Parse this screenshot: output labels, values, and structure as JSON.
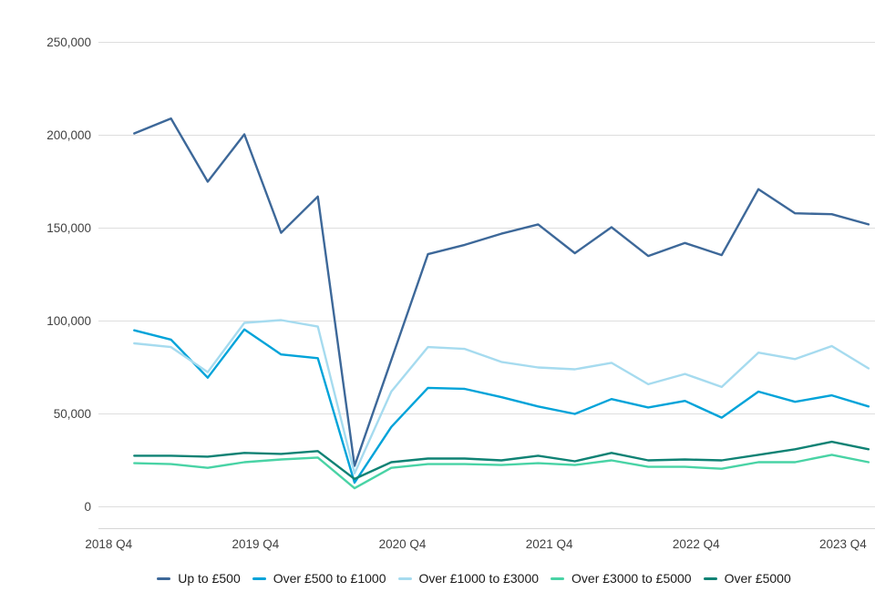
{
  "chart_data": {
    "type": "line",
    "title": "",
    "categories": [
      "2018 Q4",
      "2019 Q1",
      "2019 Q2",
      "2019 Q3",
      "2019 Q4",
      "2020 Q1",
      "2020 Q2",
      "2020 Q3",
      "2020 Q4",
      "2021 Q1",
      "2021 Q2",
      "2021 Q3",
      "2021 Q4",
      "2022 Q1",
      "2022 Q2",
      "2022 Q3",
      "2022 Q4",
      "2023 Q1",
      "2023 Q2",
      "2023 Q3",
      "2023 Q4"
    ],
    "series": [
      {
        "name": "Up to £500",
        "color": "#3d6899",
        "values": [
          201000,
          209000,
          175000,
          200500,
          147500,
          167000,
          22000,
          79000,
          136000,
          141000,
          147000,
          152000,
          136500,
          150500,
          135000,
          142000,
          135500,
          171000,
          158000,
          157500,
          152000
        ]
      },
      {
        "name": "Over £500 to £1000",
        "color": "#00a3d9",
        "values": [
          95000,
          90000,
          69500,
          95500,
          82000,
          80000,
          13000,
          43000,
          64000,
          63500,
          59000,
          54000,
          50000,
          58000,
          53500,
          57000,
          48000,
          62000,
          56500,
          60000,
          54000
        ]
      },
      {
        "name": "Over £1000 to £3000",
        "color": "#a6dbef",
        "values": [
          88000,
          86000,
          72500,
          99000,
          100500,
          97000,
          18000,
          62000,
          86000,
          85000,
          78000,
          75000,
          74000,
          77500,
          66000,
          71500,
          64500,
          83000,
          79500,
          86500,
          74500
        ]
      },
      {
        "name": "Over £3000 to £5000",
        "color": "#49d3a5",
        "values": [
          23500,
          23000,
          21000,
          24000,
          25500,
          26500,
          10000,
          21000,
          23000,
          23000,
          22500,
          23500,
          22500,
          25000,
          21500,
          21500,
          20500,
          24000,
          24000,
          28000,
          24000
        ]
      },
      {
        "name": "Over £5000",
        "color": "#0f8274",
        "values": [
          27500,
          27500,
          27000,
          29000,
          28500,
          30000,
          15000,
          24000,
          26000,
          26000,
          25000,
          27500,
          24500,
          29000,
          25000,
          25500,
          25000,
          28000,
          31000,
          35000,
          31000
        ]
      }
    ],
    "y_axis": {
      "min": 0,
      "max": 250000,
      "tick_step": 50000,
      "tick_labels": [
        "0",
        "50,000",
        "100,000",
        "150,000",
        "200,000",
        "250,000"
      ]
    },
    "x_axis": {
      "visible_tick_labels": [
        "2018 Q4",
        "2019 Q4",
        "2020 Q4",
        "2021 Q4",
        "2022 Q4",
        "2023 Q4"
      ],
      "label_every_n_points": 4
    },
    "legend_position": "bottom",
    "grid": "horizontal"
  },
  "style": {
    "grid_color": "#dedede",
    "axis_line_color": "#d6d6d6",
    "tick_label_color": "#414141",
    "legend_text_color": "#1a1a1a",
    "background": "#ffffff"
  }
}
